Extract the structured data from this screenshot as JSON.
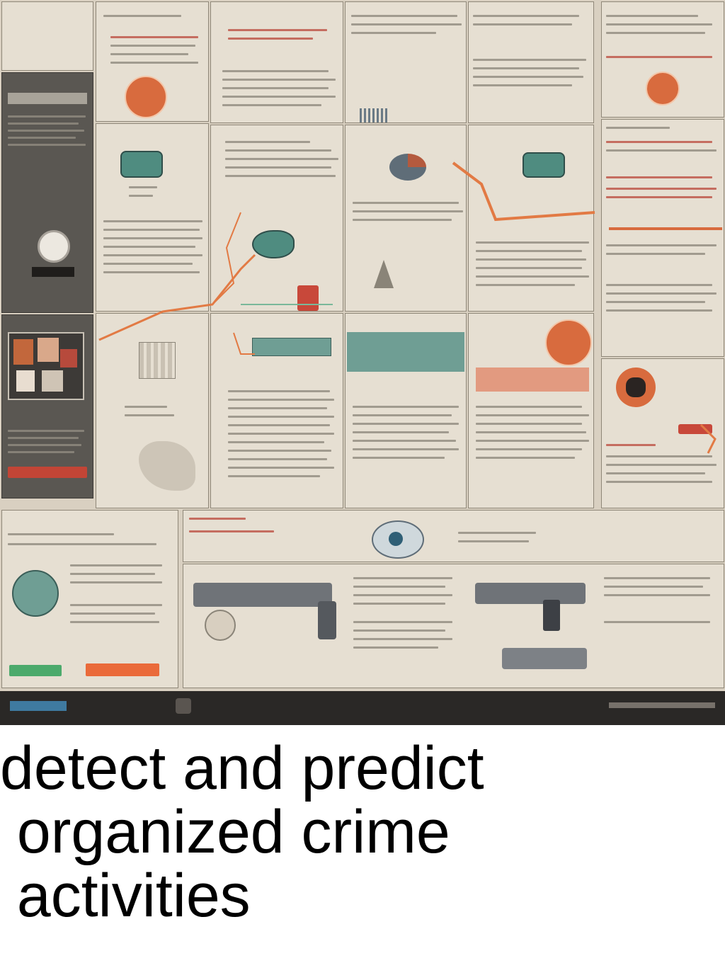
{
  "caption": {
    "line1": "detect and predict",
    "line2": " organized crime",
    "line3": " activities"
  },
  "colors": {
    "background": "#d9d0c1",
    "panel": "#e6dfd2",
    "accent_orange": "#d86b3e",
    "accent_red": "#c8483a",
    "accent_teal": "#4f8c80",
    "dark_panel": "#5a5752",
    "footer": "#2a2826"
  },
  "icons": [
    "gun-icon",
    "surveillance-camera-icon",
    "map-icon",
    "pie-chart-icon",
    "building-icon",
    "badge-icon",
    "tower-icon"
  ]
}
